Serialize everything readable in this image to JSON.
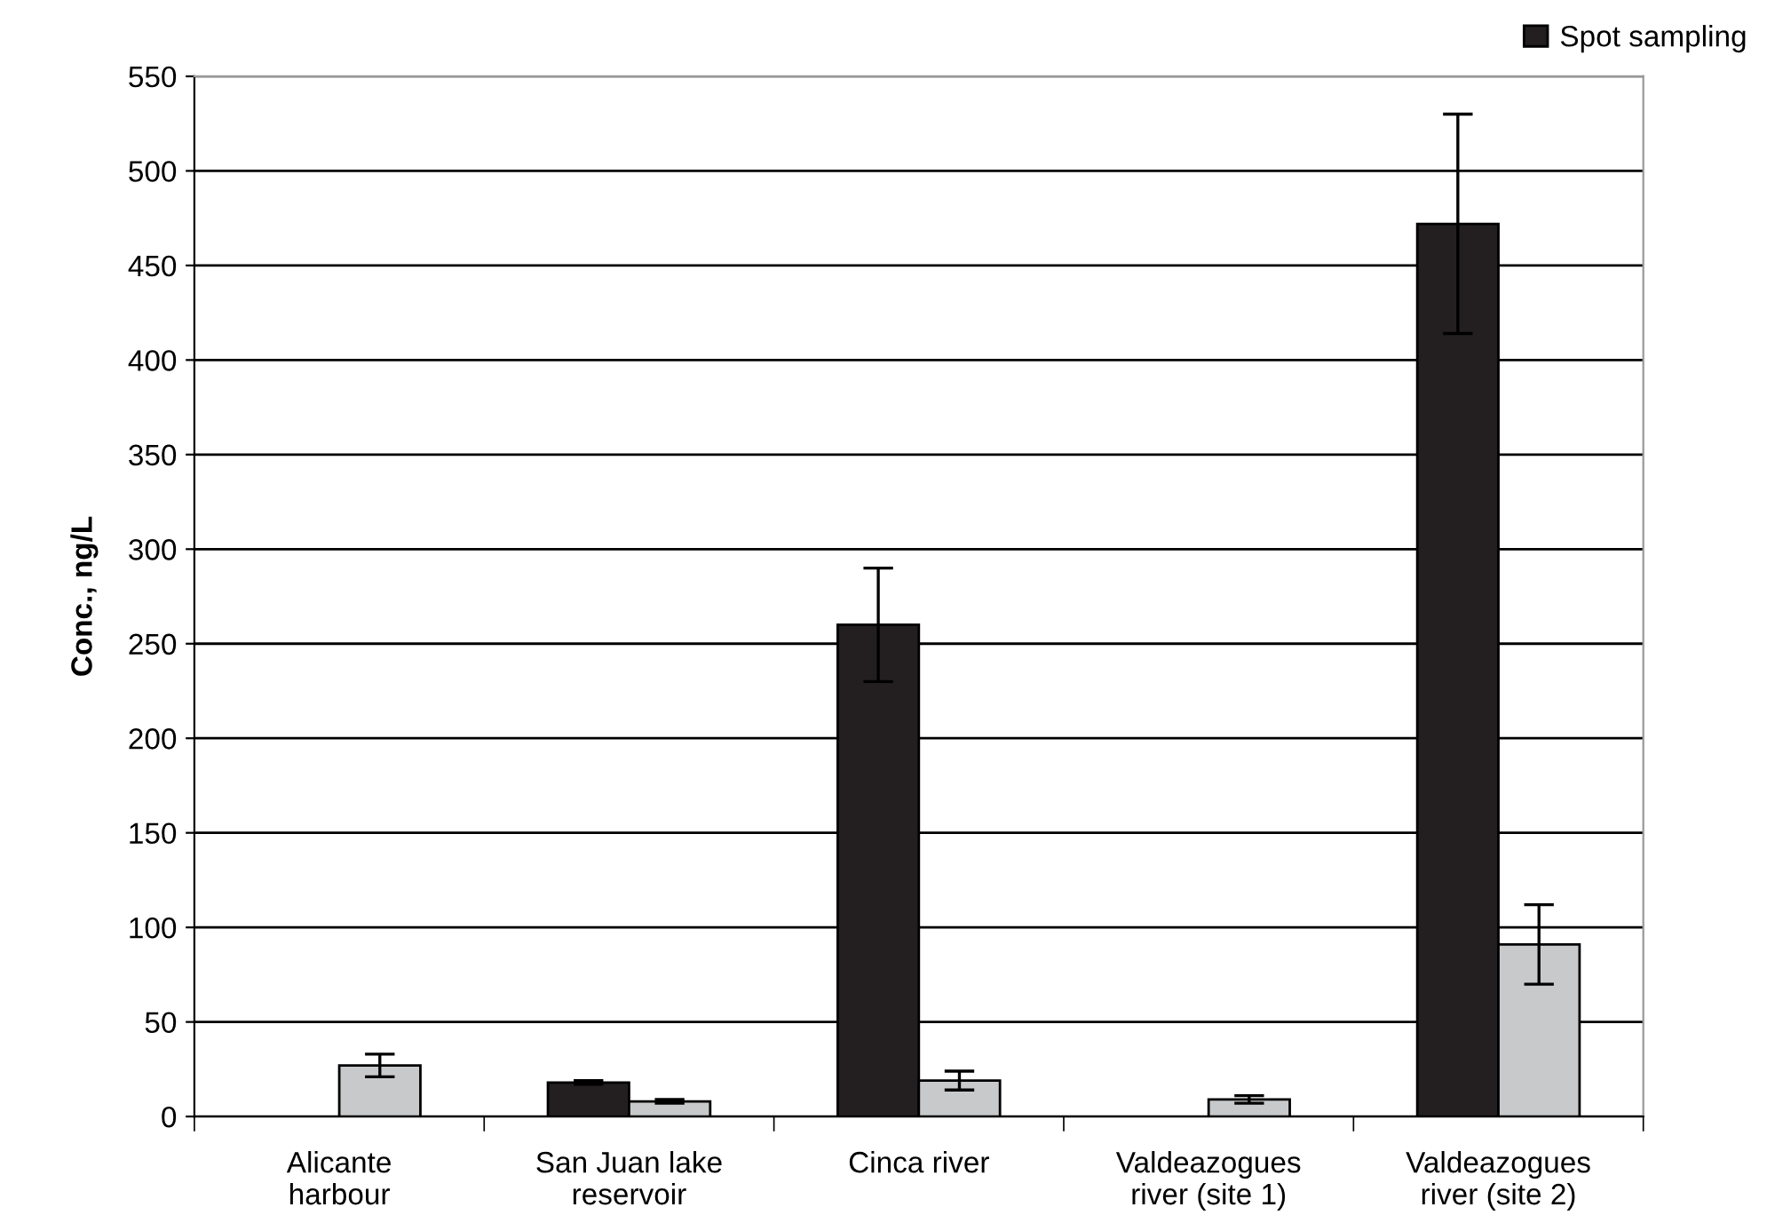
{
  "chart_data": {
    "type": "bar",
    "ylabel": "Conc., ng/L",
    "categories": [
      "Alicante\nharbour",
      "San Juan lake\nreservoir",
      "Cinca river",
      "Valdeazogues\nriver (site 1)",
      "Valdeazogues\nriver (site 2)"
    ],
    "series": [
      {
        "name": "Spot sampling",
        "color": "#231f20",
        "values": [
          null,
          18,
          260,
          null,
          472
        ],
        "errors": [
          null,
          1,
          30,
          null,
          58
        ]
      },
      {
        "color": "#c8c9cb",
        "values": [
          27,
          8,
          19,
          9,
          91
        ],
        "errors": [
          6,
          1,
          5,
          2,
          21
        ]
      }
    ],
    "ylim": [
      0,
      550
    ],
    "yticks": [
      0,
      50,
      100,
      150,
      200,
      250,
      300,
      350,
      400,
      450,
      500,
      550
    ],
    "grid": "y",
    "legend": "top right"
  }
}
